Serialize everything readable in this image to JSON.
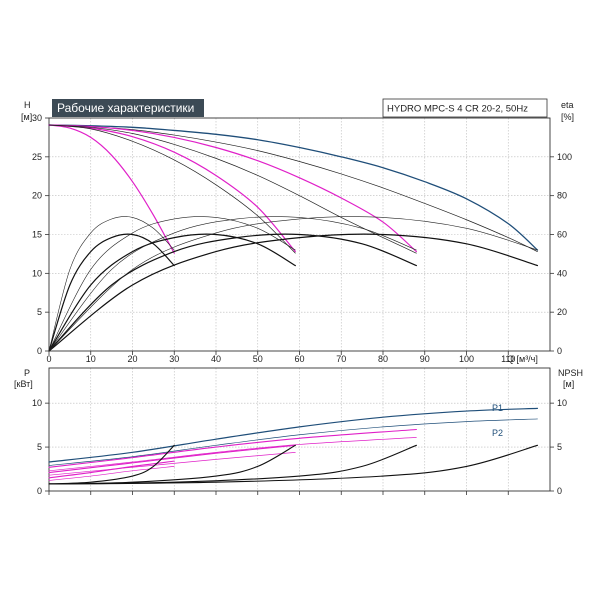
{
  "title": "Рабочие характеристики",
  "model": "HYDRO MPC-S 4 CR 20-2, 50Hz",
  "colors": {
    "accent": "#1f4e79",
    "pink": "#e020c8",
    "black": "#111111",
    "title_bg": "#3c4a55"
  },
  "chart_data": [
    {
      "type": "line",
      "name": "head_eta",
      "xlabel": "Q [м³/ч]",
      "ylabel": "H",
      "ylabel_unit": "[м]",
      "y2label": "eta",
      "y2label_unit": "[%]",
      "xlim": [
        0,
        120
      ],
      "ylim": [
        0,
        30
      ],
      "y2lim": [
        0,
        120
      ],
      "xticks": [
        "0",
        "10",
        "20",
        "30",
        "40",
        "50",
        "60",
        "70",
        "80",
        "90",
        "100",
        "110"
      ],
      "yticks": [
        "0",
        "5",
        "10",
        "15",
        "20",
        "25",
        "30"
      ],
      "y2ticks": [
        "0",
        "20",
        "40",
        "60",
        "80",
        "100"
      ],
      "series": [
        {
          "role": "head_max",
          "color": "#1f4e79",
          "width": 1.3,
          "x": [
            0,
            10,
            20,
            30,
            40,
            50,
            60,
            70,
            80,
            90,
            100,
            110,
            117
          ],
          "y": [
            29.1,
            29.0,
            28.8,
            28.4,
            27.9,
            27.2,
            26.2,
            25.0,
            23.6,
            21.8,
            19.6,
            16.4,
            13.0
          ]
        },
        {
          "role": "head_red_4",
          "color": "#222222",
          "width": 0.7,
          "x": [
            0,
            10,
            20,
            30,
            40,
            50,
            60,
            70,
            80,
            90,
            100,
            110,
            117
          ],
          "y": [
            29.1,
            28.9,
            28.5,
            27.8,
            26.9,
            25.8,
            24.4,
            22.8,
            21.0,
            19.0,
            16.9,
            14.6,
            12.8
          ]
        },
        {
          "role": "head_3",
          "color": "#e020c8",
          "width": 1.2,
          "x": [
            0,
            10,
            20,
            30,
            40,
            50,
            60,
            70,
            80,
            88
          ],
          "y": [
            29.1,
            28.9,
            28.4,
            27.5,
            26.2,
            24.5,
            22.3,
            19.7,
            16.6,
            12.8
          ]
        },
        {
          "role": "head_2",
          "color": "#e020c8",
          "width": 1.2,
          "x": [
            0,
            10,
            20,
            30,
            40,
            50,
            59
          ],
          "y": [
            29.1,
            28.7,
            27.6,
            25.6,
            22.6,
            18.5,
            12.8
          ]
        },
        {
          "role": "head_1",
          "color": "#e020c8",
          "width": 1.2,
          "x": [
            0,
            5,
            10,
            15,
            20,
            25,
            30
          ],
          "y": [
            29.1,
            28.7,
            27.5,
            25.2,
            21.8,
            17.5,
            12.6
          ]
        },
        {
          "role": "head_red_3",
          "color": "#222222",
          "width": 0.7,
          "x": [
            0,
            10,
            20,
            30,
            40,
            50,
            60,
            70,
            80,
            88
          ],
          "y": [
            29.1,
            28.8,
            28.0,
            26.6,
            24.8,
            22.6,
            20.0,
            17.2,
            14.6,
            12.6
          ]
        },
        {
          "role": "head_red_2",
          "color": "#222222",
          "width": 0.7,
          "x": [
            0,
            10,
            20,
            30,
            40,
            50,
            59
          ],
          "y": [
            29.1,
            28.6,
            27.0,
            24.6,
            21.4,
            17.4,
            12.6
          ]
        },
        {
          "role": "eta_1",
          "color": "#111111",
          "width": 1.2,
          "x": [
            0,
            5,
            10,
            15,
            20,
            25,
            30
          ],
          "y": [
            0,
            8.5,
            12.8,
            14.6,
            15.0,
            13.8,
            11.0
          ]
        },
        {
          "role": "eta_2",
          "color": "#111111",
          "width": 1.2,
          "x": [
            0,
            10,
            20,
            30,
            40,
            50,
            59
          ],
          "y": [
            0,
            8.5,
            12.8,
            14.6,
            15.0,
            13.8,
            11.0
          ]
        },
        {
          "role": "eta_3",
          "color": "#111111",
          "width": 1.2,
          "x": [
            0,
            15,
            30,
            45,
            60,
            75,
            88
          ],
          "y": [
            0,
            8.5,
            12.8,
            14.6,
            15.0,
            13.8,
            11.0
          ]
        },
        {
          "role": "eta_4",
          "color": "#111111",
          "width": 1.2,
          "x": [
            0,
            20,
            40,
            60,
            80,
            100,
            117
          ],
          "y": [
            0,
            8.5,
            12.8,
            14.6,
            15.0,
            13.8,
            11.0
          ]
        },
        {
          "role": "eta_1_thin",
          "color": "#222222",
          "width": 0.6,
          "x": [
            0,
            5,
            10,
            15,
            20,
            25,
            30
          ],
          "y": [
            0,
            10.5,
            15.2,
            17.0,
            17.2,
            15.8,
            13.0
          ]
        },
        {
          "role": "eta_2_thin",
          "color": "#222222",
          "width": 0.6,
          "x": [
            0,
            10,
            20,
            30,
            40,
            50,
            59
          ],
          "y": [
            0,
            10.5,
            15.2,
            17.0,
            17.2,
            15.8,
            13.0
          ]
        },
        {
          "role": "eta_3_thin",
          "color": "#222222",
          "width": 0.6,
          "x": [
            0,
            15,
            30,
            45,
            60,
            75,
            88
          ],
          "y": [
            0,
            10.5,
            15.2,
            17.0,
            17.2,
            15.8,
            13.0
          ]
        },
        {
          "role": "eta_4_thin",
          "color": "#222222",
          "width": 0.6,
          "x": [
            0,
            20,
            40,
            60,
            80,
            100,
            117
          ],
          "y": [
            0,
            10.5,
            15.2,
            17.0,
            17.2,
            15.8,
            13.0
          ]
        }
      ]
    },
    {
      "type": "line",
      "name": "power_npsh",
      "ylabel": "P",
      "ylabel_unit": "[кВт]",
      "y2label": "NPSH",
      "y2label_unit": "[м]",
      "xlim": [
        0,
        120
      ],
      "ylim": [
        0,
        14
      ],
      "y2lim": [
        0,
        14
      ],
      "yticks": [
        "0",
        "5",
        "10"
      ],
      "y2ticks": [
        "0",
        "5",
        "10"
      ],
      "series_labels": [
        "P1",
        "P2"
      ],
      "series": [
        {
          "role": "P1",
          "color": "#1f4e79",
          "width": 1.2,
          "x": [
            0,
            20,
            40,
            60,
            80,
            100,
            117
          ],
          "y": [
            3.3,
            4.4,
            5.9,
            7.3,
            8.4,
            9.1,
            9.4
          ]
        },
        {
          "role": "P2",
          "color": "#1f4e79",
          "width": 0.7,
          "x": [
            0,
            20,
            40,
            60,
            80,
            100,
            117
          ],
          "y": [
            2.9,
            3.9,
            5.2,
            6.4,
            7.3,
            7.9,
            8.2
          ]
        },
        {
          "role": "P1_3",
          "color": "#e020c8",
          "width": 1.1,
          "x": [
            0,
            20,
            40,
            60,
            88
          ],
          "y": [
            2.7,
            3.8,
            5.0,
            6.0,
            7.0
          ]
        },
        {
          "role": "P2_3",
          "color": "#e020c8",
          "width": 0.7,
          "x": [
            0,
            20,
            40,
            60,
            88
          ],
          "y": [
            2.3,
            3.3,
            4.4,
            5.3,
            6.1
          ]
        },
        {
          "role": "P1_2",
          "color": "#e020c8",
          "width": 1.1,
          "x": [
            0,
            20,
            40,
            59
          ],
          "y": [
            2.1,
            3.2,
            4.3,
            5.2
          ]
        },
        {
          "role": "P2_2",
          "color": "#e020c8",
          "width": 0.7,
          "x": [
            0,
            20,
            40,
            59
          ],
          "y": [
            1.8,
            2.7,
            3.6,
            4.4
          ]
        },
        {
          "role": "P1_1",
          "color": "#e020c8",
          "width": 1.1,
          "x": [
            0,
            10,
            20,
            30
          ],
          "y": [
            1.5,
            2.1,
            2.8,
            3.4
          ]
        },
        {
          "role": "P2_1",
          "color": "#e020c8",
          "width": 0.7,
          "x": [
            0,
            10,
            20,
            30
          ],
          "y": [
            1.2,
            1.7,
            2.3,
            2.8
          ]
        },
        {
          "role": "NPSH_1",
          "color": "#111111",
          "width": 1.1,
          "x": [
            0,
            10,
            20,
            25,
            30
          ],
          "y": [
            0.8,
            1.0,
            1.7,
            2.8,
            5.2
          ]
        },
        {
          "role": "NPSH_2",
          "color": "#111111",
          "width": 1.1,
          "x": [
            0,
            20,
            40,
            50,
            59
          ],
          "y": [
            0.8,
            1.0,
            1.7,
            2.8,
            5.2
          ]
        },
        {
          "role": "NPSH_3",
          "color": "#111111",
          "width": 1.1,
          "x": [
            0,
            30,
            60,
            75,
            88
          ],
          "y": [
            0.8,
            1.0,
            1.7,
            2.8,
            5.2
          ]
        },
        {
          "role": "NPSH_4",
          "color": "#111111",
          "width": 1.1,
          "x": [
            0,
            40,
            80,
            100,
            117
          ],
          "y": [
            0.8,
            1.0,
            1.7,
            2.8,
            5.2
          ]
        }
      ]
    }
  ]
}
